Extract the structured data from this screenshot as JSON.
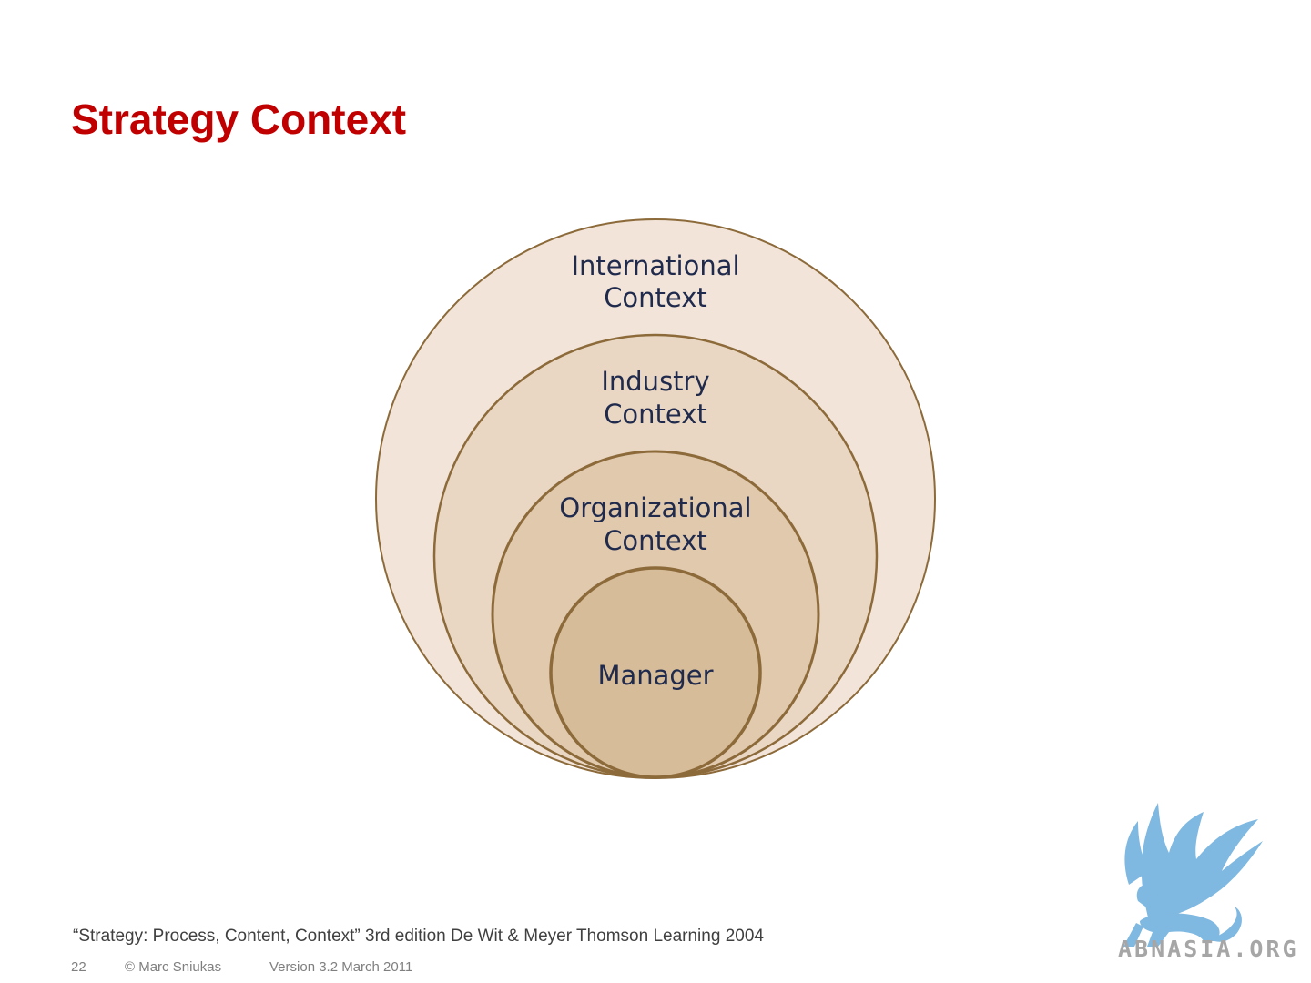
{
  "slide": {
    "title": "Strategy Context",
    "citation": "“Strategy: Process, Content, Context” 3rd edition De Wit & Meyer Thomson Learning 2004",
    "footer": {
      "page_number": "22",
      "copyright": "© Marc Sniukas",
      "version": "Version 3.2 March 2011"
    }
  },
  "diagram": {
    "levels": [
      {
        "line1": "International",
        "line2": "Context",
        "fill": "#f2e4d8"
      },
      {
        "line1": "Industry",
        "line2": "Context",
        "fill": "#ead7c3"
      },
      {
        "line1": "Organizational",
        "line2": "Context",
        "fill": "#e1c9ad"
      },
      {
        "line1": "Manager",
        "line2": "",
        "fill": "#d6bc98"
      }
    ],
    "stroke_color": "#8c6a3a"
  },
  "logo": {
    "text": "ABNASIA.ORG",
    "icon": "griffin-icon",
    "color": "#7fb8e0"
  }
}
